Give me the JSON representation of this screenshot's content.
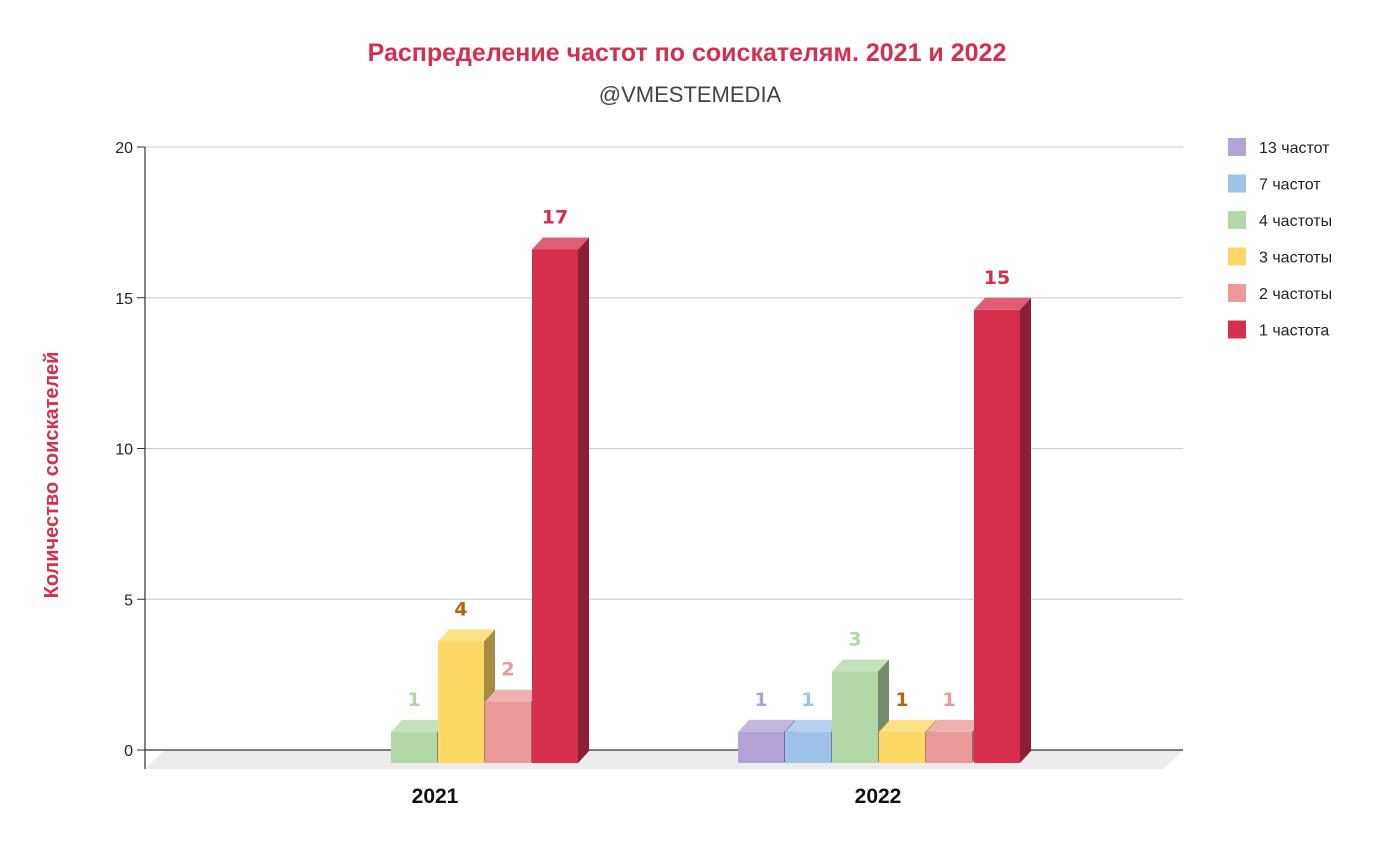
{
  "chart_data": {
    "type": "bar",
    "style": "3d-grouped",
    "title": "Распределение частот по соискателям. 2021 и 2022",
    "subtitle": "@VMESTEMEDIA",
    "ylabel": "Количество соискателей",
    "xlabel": "",
    "ylim": [
      0,
      20
    ],
    "yticks": [
      0,
      5,
      10,
      15,
      20
    ],
    "grid": true,
    "legend_position": "right",
    "title_color": "#d62f4e",
    "categories": [
      "2021",
      "2022"
    ],
    "series": [
      {
        "name": "13 частот",
        "color": "#b3a3d6",
        "label_color": "#b3a3d6",
        "values": [
          null,
          1
        ]
      },
      {
        "name": "7 частот",
        "color": "#9fc3e8",
        "label_color": "#9fc3e8",
        "values": [
          null,
          1
        ]
      },
      {
        "name": "4 частоты",
        "color": "#b4d7a8",
        "label_color": "#b4d7a8",
        "values": [
          1,
          3
        ]
      },
      {
        "name": "3 частоты",
        "color": "#fdd866",
        "label_color": "#b2680b",
        "values": [
          4,
          1
        ]
      },
      {
        "name": "2 частоты",
        "color": "#ea9a9a",
        "label_color": "#ea9a9a",
        "values": [
          2,
          1
        ]
      },
      {
        "name": "1 частота",
        "color": "#d62f4e",
        "label_color": "#d62f4e",
        "values": [
          17,
          15
        ]
      }
    ],
    "data_labels": [
      [
        "",
        "",
        "1",
        "4",
        "2",
        "17"
      ],
      [
        "1",
        "1",
        "3",
        "1",
        "1",
        "15"
      ]
    ]
  }
}
